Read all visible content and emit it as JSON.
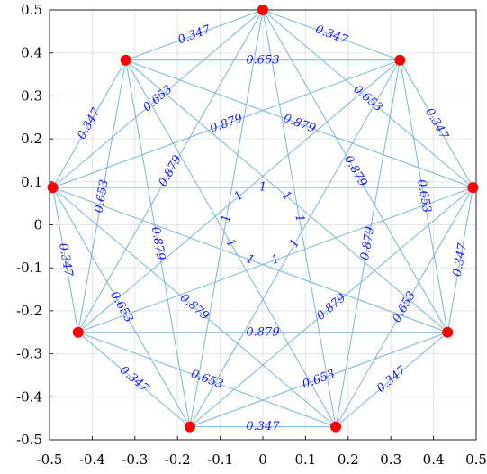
{
  "chart_data": {
    "type": "scatter",
    "title": "",
    "xlabel": "",
    "ylabel": "",
    "xlim": [
      -0.5,
      0.5
    ],
    "ylim": [
      -0.5,
      0.5
    ],
    "grid": true,
    "x_ticks": [
      "-0.5",
      "-0.4",
      "-0.3",
      "-0.2",
      "-0.1",
      "0",
      "0.1",
      "0.2",
      "0.3",
      "0.4",
      "0.5"
    ],
    "y_ticks": [
      "0.5",
      "0.4",
      "0.3",
      "0.2",
      "0.1",
      "0",
      "-0.1",
      "-0.2",
      "-0.3",
      "-0.4",
      "-0.5"
    ],
    "x_tick_values": [
      -0.5,
      -0.4,
      -0.3,
      -0.2,
      -0.1,
      0,
      0.1,
      0.2,
      0.3,
      0.4,
      0.5
    ],
    "y_tick_values": [
      0.5,
      0.4,
      0.3,
      0.2,
      0.1,
      0,
      -0.1,
      -0.2,
      -0.3,
      -0.4,
      -0.5
    ],
    "node_color": "#ff0000",
    "edge_color": "#78b4dc",
    "label_color": "#1a1aff",
    "nodes": [
      {
        "x": 0,
        "y": 0.5
      },
      {
        "x": 0.3214,
        "y": 0.383
      },
      {
        "x": 0.4924,
        "y": 0.0868
      },
      {
        "x": 0.433,
        "y": -0.25
      },
      {
        "x": 0.171,
        "y": -0.4698
      },
      {
        "x": -0.171,
        "y": -0.4698
      },
      {
        "x": -0.433,
        "y": -0.25
      },
      {
        "x": -0.4924,
        "y": 0.0868
      },
      {
        "x": -0.3214,
        "y": 0.383
      }
    ],
    "edge_weights_by_step": [
      "0.347",
      "0.653",
      "0.879",
      "1"
    ]
  }
}
